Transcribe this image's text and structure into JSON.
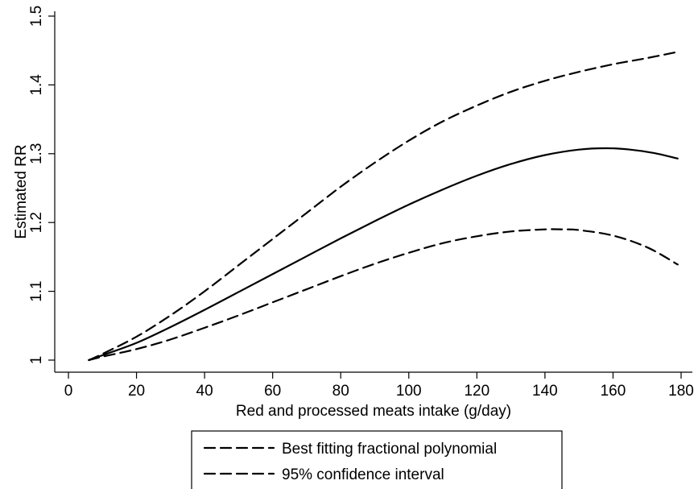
{
  "chart_data": {
    "type": "line",
    "title": "",
    "xlabel": "Red and processed meats intake (g/day)",
    "ylabel": "Estimated RR",
    "xlim": [
      0,
      180
    ],
    "ylim": [
      1,
      1.5
    ],
    "xticks": [
      0,
      20,
      40,
      60,
      80,
      100,
      120,
      140,
      160,
      180
    ],
    "yticks": [
      1,
      1.1,
      1.2,
      1.3,
      1.4,
      1.5
    ],
    "xtick_labels": [
      "0",
      "20",
      "40",
      "60",
      "80",
      "100",
      "120",
      "140",
      "160",
      "180"
    ],
    "ytick_labels": [
      "1",
      "1.1",
      "1.2",
      "1.3",
      "1.4",
      "1.5"
    ],
    "grid": false,
    "legend_position": "bottom",
    "legend": [
      {
        "label": "Best fitting fractional polynomial",
        "style": "dashed"
      },
      {
        "label": "95% confidence interval",
        "style": "dashed"
      }
    ],
    "series": [
      {
        "style": "solid",
        "color": "#000000",
        "x": [
          6,
          10,
          20,
          30,
          40,
          50,
          60,
          70,
          80,
          90,
          100,
          110,
          120,
          130,
          140,
          150,
          158,
          165,
          172,
          179
        ],
        "y": [
          1.0,
          1.007,
          1.025,
          1.048,
          1.073,
          1.099,
          1.125,
          1.151,
          1.177,
          1.202,
          1.226,
          1.248,
          1.268,
          1.285,
          1.298,
          1.306,
          1.308,
          1.306,
          1.301,
          1.293
        ]
      },
      {
        "style": "dashed",
        "color": "#000000",
        "x": [
          6,
          10,
          20,
          30,
          40,
          50,
          60,
          70,
          80,
          90,
          100,
          110,
          120,
          130,
          140,
          150,
          160,
          170,
          179
        ],
        "y": [
          1.0,
          1.009,
          1.034,
          1.065,
          1.1,
          1.138,
          1.176,
          1.214,
          1.252,
          1.287,
          1.319,
          1.347,
          1.37,
          1.39,
          1.406,
          1.419,
          1.43,
          1.439,
          1.448
        ]
      },
      {
        "style": "dashed",
        "color": "#000000",
        "x": [
          6,
          10,
          20,
          30,
          40,
          50,
          60,
          70,
          80,
          90,
          100,
          110,
          120,
          130,
          140,
          145,
          150,
          160,
          170,
          179
        ],
        "y": [
          1.0,
          1.005,
          1.016,
          1.03,
          1.047,
          1.065,
          1.084,
          1.103,
          1.122,
          1.14,
          1.156,
          1.17,
          1.18,
          1.187,
          1.19,
          1.19,
          1.189,
          1.181,
          1.164,
          1.139
        ]
      }
    ]
  }
}
